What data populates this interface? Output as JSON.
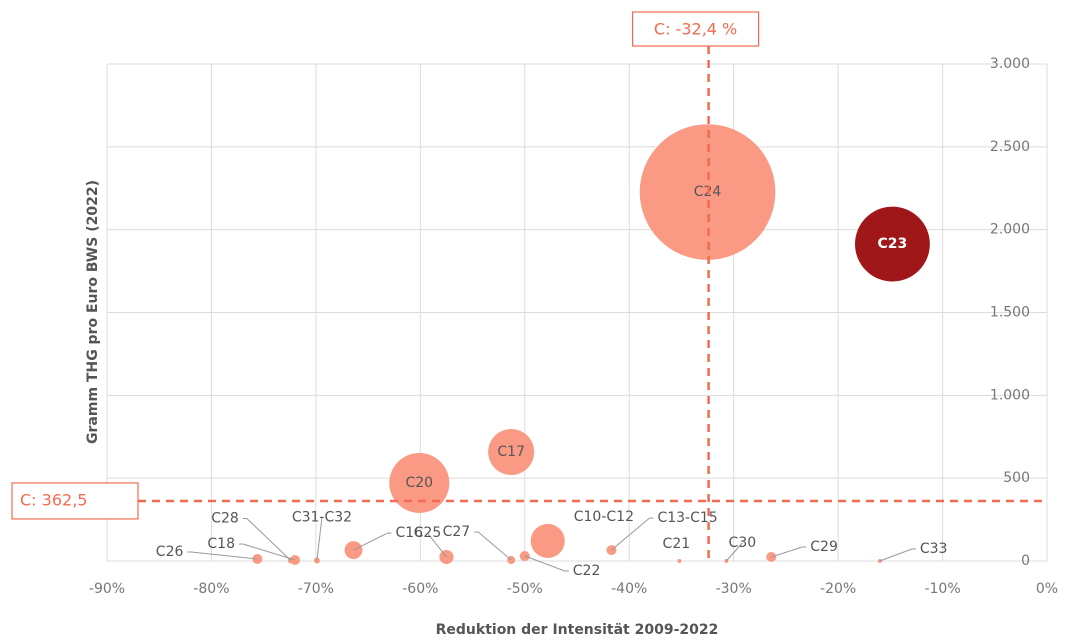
{
  "chart_data": {
    "type": "bubble",
    "x_label": "Reduktion der Intensität 2009-2022",
    "y_label": "Gramm THG pro Euro BWS (2022)",
    "names": [
      "C24",
      "C23",
      "C20",
      "C17",
      "C10-C12",
      "C16",
      "C25",
      "C27",
      "C22",
      "C13-C15",
      "C21",
      "C30",
      "C29",
      "C33",
      "C26",
      "C18",
      "C28",
      "C31-C32"
    ],
    "x": [
      -32.5,
      -14.8,
      -60.1,
      -51.3,
      -47.8,
      -66.4,
      -57.5,
      -51.3,
      -50.0,
      -41.7,
      -35.2,
      -30.7,
      -26.4,
      -16.0,
      -75.6,
      -72.0,
      -72.4,
      -69.9
    ],
    "y": [
      2227,
      1913,
      471,
      658,
      121,
      66,
      24,
      6,
      30,
      66,
      0,
      0,
      24,
      0,
      12,
      6,
      3,
      3
    ],
    "sizes": [
      4600,
      1400,
      900,
      530,
      290,
      80,
      50,
      16,
      25,
      25,
      4,
      4,
      25,
      4,
      25,
      25,
      9,
      9
    ],
    "colors": [
      "#fa9a85",
      "#a01719",
      "#fa9a85",
      "#fa9a85",
      "#fa9a85",
      "#fa9a85",
      "#fa9a85",
      "#fa9a85",
      "#fa9a85",
      "#fa9a85",
      "#fa9a85",
      "#fa9a85",
      "#fa9a85",
      "#fa9a85",
      "#fa9a85",
      "#fa9a85",
      "#fa9a85",
      "#fa9a85"
    ],
    "xlim": [
      -90,
      0
    ],
    "xticks": [
      {
        "value": -90,
        "label": "-90%"
      },
      {
        "value": -80,
        "label": "-80%"
      },
      {
        "value": -70,
        "label": "-70%"
      },
      {
        "value": -60,
        "label": "-60%"
      },
      {
        "value": -50,
        "label": "-50%"
      },
      {
        "value": -40,
        "label": "-40%"
      },
      {
        "value": -30,
        "label": "-30%"
      },
      {
        "value": -20,
        "label": "-20%"
      },
      {
        "value": -10,
        "label": "-10%"
      },
      {
        "value": 0,
        "label": "0%"
      }
    ],
    "ylim": [
      0,
      3000
    ],
    "yticks": [
      0,
      500,
      {
        "value": 1000,
        "label": "1.000"
      },
      {
        "value": 1500,
        "label": "1.500"
      },
      {
        "value": 2000,
        "label": "2.000"
      },
      {
        "value": 2500,
        "label": "2.500"
      },
      {
        "value": 3000,
        "label": "3.000"
      }
    ],
    "grid": true,
    "reference_lines": [
      {
        "axis": "x",
        "value": -32.4,
        "label": "C: -32,4 %"
      },
      {
        "axis": "y",
        "value": 362.5,
        "label": "C: 362,5"
      }
    ]
  }
}
